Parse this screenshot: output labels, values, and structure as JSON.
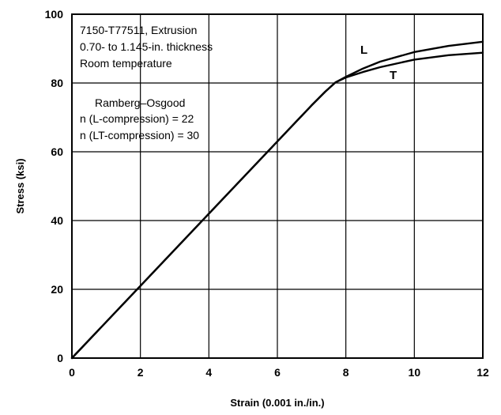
{
  "chart_data": {
    "type": "line",
    "title": "",
    "xlabel": "Strain (0.001 in./in.)",
    "ylabel": "Stress (ksi)",
    "xlim": [
      0,
      12
    ],
    "ylim": [
      0,
      100
    ],
    "x_ticks": [
      "0",
      "2",
      "4",
      "6",
      "8",
      "10",
      "12"
    ],
    "y_ticks": [
      "0",
      "20",
      "40",
      "60",
      "80",
      "100"
    ],
    "grid": true,
    "annotations": {
      "material_lines": [
        "7150-T77511, Extrusion",
        "0.70- to 1.145-in. thickness",
        "Room temperature"
      ],
      "ramberg_lines": [
        "Ramberg–Osgood",
        "n (L-compression) = 22",
        "n (LT-compression) = 30"
      ]
    },
    "series": [
      {
        "name": "L",
        "x": [
          0,
          2,
          4,
          6,
          7,
          7.4,
          7.7,
          8.0,
          8.5,
          9.0,
          10.0,
          11.0,
          12.0
        ],
        "y": [
          0,
          21,
          42,
          63,
          73.5,
          77.5,
          80.2,
          81.8,
          84.2,
          86.2,
          89.0,
          90.8,
          92.0
        ]
      },
      {
        "name": "T",
        "x": [
          0,
          2,
          4,
          6,
          7,
          7.4,
          7.7,
          8.0,
          8.5,
          9.0,
          10.0,
          11.0,
          12.0
        ],
        "y": [
          0,
          21,
          42,
          63,
          73.5,
          77.5,
          80.2,
          81.6,
          83.2,
          84.6,
          86.8,
          88.1,
          88.8
        ]
      }
    ]
  }
}
